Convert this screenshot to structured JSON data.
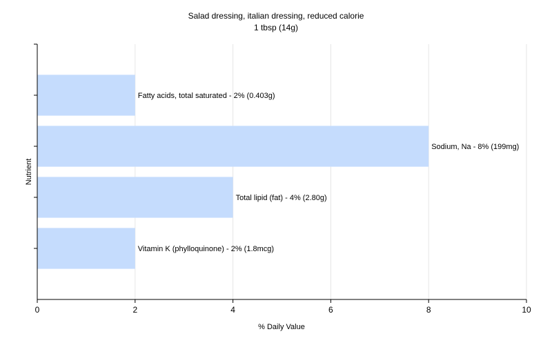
{
  "chart_data": {
    "type": "bar",
    "orientation": "horizontal",
    "title": "Salad dressing, italian dressing, reduced calorie",
    "subtitle": "1 tbsp (14g)",
    "xlabel": "% Daily Value",
    "ylabel": "Nutrient",
    "xlim": [
      0,
      10
    ],
    "xticks": [
      "0",
      "2",
      "4",
      "6",
      "8",
      "10"
    ],
    "grid": true,
    "bar_color": "#c5dcfd",
    "categories": [
      "Fatty acids, total saturated",
      "Sodium, Na",
      "Total lipid (fat)",
      "Vitamin K (phylloquinone)"
    ],
    "values": [
      2,
      8,
      4,
      2
    ],
    "labels": [
      "Fatty acids, total saturated - 2% (0.403g)",
      "Sodium, Na - 8% (199mg)",
      "Total lipid (fat) - 4% (2.80g)",
      "Vitamin K (phylloquinone) - 2% (1.8mcg)"
    ]
  }
}
